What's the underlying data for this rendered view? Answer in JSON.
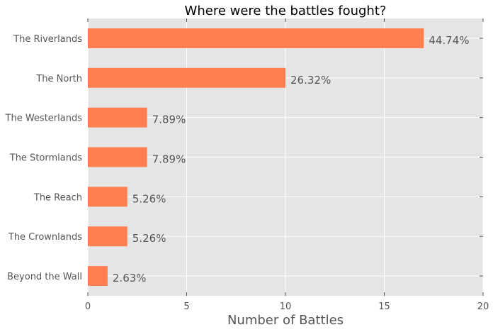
{
  "chart_data": {
    "type": "bar",
    "orientation": "horizontal",
    "title": "Where were the battles fought?",
    "xlabel": "Number of Battles",
    "ylabel": "",
    "xlim": [
      0,
      20
    ],
    "xticks": [
      "0",
      "5",
      "10",
      "15",
      "20"
    ],
    "categories": [
      "The Riverlands",
      "The North",
      "The Westerlands",
      "The Stormlands",
      "The Reach",
      "The Crownlands",
      "Beyond the Wall"
    ],
    "values": [
      17,
      10,
      3,
      3,
      2,
      2,
      1
    ],
    "data_labels": [
      "44.74%",
      "26.32%",
      "7.89%",
      "7.89%",
      "5.26%",
      "5.26%",
      "2.63%"
    ],
    "grid": true,
    "legend": "none",
    "colors": {
      "bar": "#FF7F50",
      "background": "#E5E5E5",
      "grid": "#FFFFFF",
      "text": "#555555"
    }
  }
}
